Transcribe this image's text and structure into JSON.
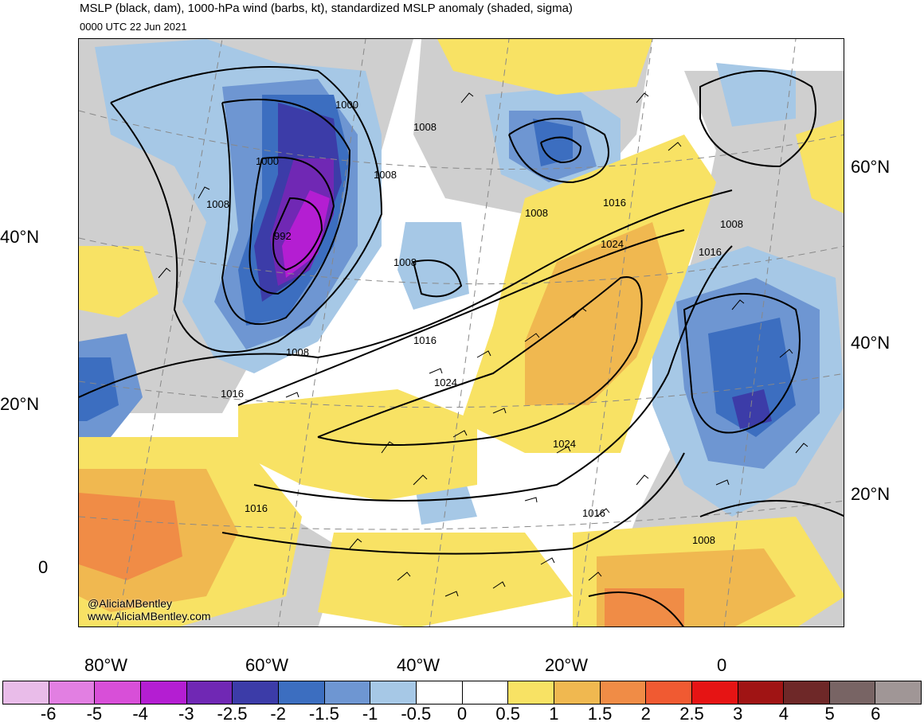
{
  "title": "MSLP (black, dam), 1000-hPa wind (barbs, kt), standardized MSLP anomaly (shaded, sigma)",
  "subtitle": "0000 UTC 22 Jun 2021",
  "lat_labels_left": [
    "40°N",
    "20°N",
    "0"
  ],
  "lat_labels_right": [
    "60°N",
    "40°N",
    "20°N"
  ],
  "lon_labels": [
    "80°W",
    "60°W",
    "40°W",
    "20°W",
    "0"
  ],
  "contour_labels": [
    "1000",
    "1000",
    "1008",
    "1008",
    "992",
    "1008",
    "1008",
    "1008",
    "1008",
    "1016",
    "1016",
    "1024",
    "1016",
    "1024",
    "1024",
    "1016",
    "1016",
    "1008",
    "1016",
    "1008"
  ],
  "credit": [
    "@AliciaMBentley",
    "www.AliciaMBentley.com"
  ],
  "colorbar": {
    "labels": [
      "-6",
      "-5",
      "-4",
      "-3",
      "-2.5",
      "-2",
      "-1.5",
      "-1",
      "-0.5",
      "0",
      "0.5",
      "1",
      "1.5",
      "2",
      "2.5",
      "3",
      "4",
      "5",
      "6"
    ],
    "colors": [
      "#e9bce9",
      "#e27fe2",
      "#d84fd8",
      "#b41ed2",
      "#7028b4",
      "#3c3ca8",
      "#3c6ec0",
      "#6e96d2",
      "#a6c8e6",
      "#ffffff",
      "#ffffff",
      "#f8e264",
      "#f0b850",
      "#f08c46",
      "#f05a32",
      "#e61414",
      "#a01414",
      "#6e2828",
      "#786464",
      "#a09696"
    ]
  },
  "colors": {
    "land": "#d0d0d0",
    "neg_light": "#a6c8e6",
    "neg_mid": "#6e96d2",
    "neg_dark": "#3c6ec0",
    "neg_deeper": "#3c3ca8",
    "neg_purple": "#7028b4",
    "neg_magenta": "#b41ed2",
    "pos_yellow": "#f8e264",
    "pos_orange": "#f0b850",
    "pos_deep": "#f08c46"
  }
}
